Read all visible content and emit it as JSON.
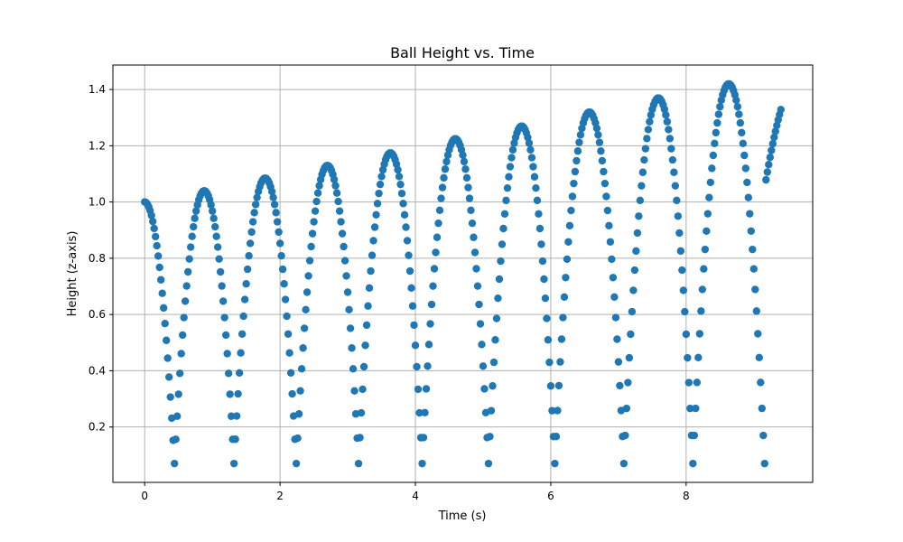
{
  "chart_data": {
    "type": "scatter",
    "title": "Ball Height vs. Time",
    "xlabel": "Time (s)",
    "ylabel": "Height (z-axis)",
    "xlim": [
      -0.47,
      9.87
    ],
    "ylim": [
      0.003,
      1.487
    ],
    "xticks": [
      0,
      2,
      4,
      6,
      8
    ],
    "yticks": [
      0.2,
      0.4,
      0.6,
      0.8,
      1.0,
      1.2,
      1.4
    ],
    "xtick_labels": [
      "0",
      "2",
      "4",
      "6",
      "8"
    ],
    "ytick_labels": [
      "0.2",
      "0.4",
      "0.6",
      "0.8",
      "1.0",
      "1.2",
      "1.4"
    ],
    "grid": true,
    "legend": "none",
    "marker_color": "#1f77b4",
    "sampling_dt": 0.02,
    "segments": [
      {
        "t_start": 0.0,
        "t_end": 0.44,
        "t_peak": 0.0,
        "h_peak": 1.0,
        "h_end": 0.07
      },
      {
        "t_start": 0.44,
        "t_end": 1.32,
        "t_peak": 0.88,
        "h_peak": 1.04,
        "h_end": 0.07
      },
      {
        "t_start": 1.32,
        "t_end": 2.24,
        "t_peak": 1.78,
        "h_peak": 1.085,
        "h_end": 0.07
      },
      {
        "t_start": 2.24,
        "t_end": 3.16,
        "t_peak": 2.7,
        "h_peak": 1.13,
        "h_end": 0.07
      },
      {
        "t_start": 3.16,
        "t_end": 4.1,
        "t_peak": 3.63,
        "h_peak": 1.175,
        "h_end": 0.07
      },
      {
        "t_start": 4.1,
        "t_end": 5.08,
        "t_peak": 4.59,
        "h_peak": 1.225,
        "h_end": 0.07
      },
      {
        "t_start": 5.08,
        "t_end": 6.06,
        "t_peak": 5.57,
        "h_peak": 1.27,
        "h_end": 0.07
      },
      {
        "t_start": 6.06,
        "t_end": 7.08,
        "t_peak": 6.57,
        "h_peak": 1.32,
        "h_end": 0.07
      },
      {
        "t_start": 7.08,
        "t_end": 8.1,
        "t_peak": 7.59,
        "h_peak": 1.37,
        "h_end": 0.07
      },
      {
        "t_start": 8.1,
        "t_end": 9.16,
        "t_peak": 8.63,
        "h_peak": 1.42,
        "h_end": 0.07
      },
      {
        "t_start": 9.16,
        "t_end": 9.4,
        "t_peak": 9.75,
        "h_peak": 1.48,
        "h_end": 1.05
      }
    ]
  }
}
